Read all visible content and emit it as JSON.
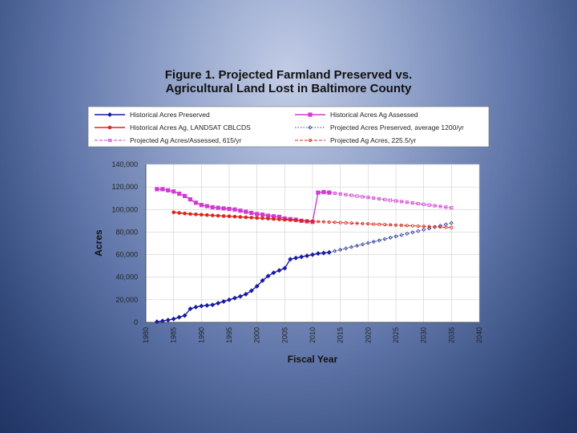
{
  "chart_data": {
    "type": "line",
    "title_lines": [
      "Figure 1. Projected Farmland Preserved vs.",
      "Agricultural Land Lost in Baltimore County"
    ],
    "xlabel": "Fiscal Year",
    "ylabel": "Acres",
    "xlim": [
      1980,
      2040
    ],
    "ylim": [
      0,
      140000
    ],
    "x_ticks": [
      1980,
      1985,
      1990,
      1995,
      2000,
      2005,
      2010,
      2015,
      2020,
      2025,
      2030,
      2035,
      2040
    ],
    "x_tick_labels": [
      "1980",
      "1985",
      "1990",
      "1995",
      "2000",
      "2005",
      "2010",
      "2015",
      "2020",
      "2025",
      "2030",
      "2035",
      "2040"
    ],
    "y_ticks": [
      0,
      20000,
      40000,
      60000,
      80000,
      100000,
      120000,
      140000
    ],
    "y_tick_labels": [
      "0",
      "20,000",
      "40,000",
      "60,000",
      "80,000",
      "100,000",
      "120,000",
      "140,000"
    ],
    "grid": true,
    "legend_position": "top",
    "series": [
      {
        "name": "Historical Acres Preserved",
        "color": "#1a1aa6",
        "style": "solid",
        "marker": "diamond",
        "x": [
          1982,
          1983,
          1984,
          1985,
          1986,
          1987,
          1988,
          1989,
          1990,
          1991,
          1992,
          1993,
          1994,
          1995,
          1996,
          1997,
          1998,
          1999,
          2000,
          2001,
          2002,
          2003,
          2004,
          2005,
          2006,
          2007,
          2008,
          2009,
          2010,
          2011,
          2012,
          2013
        ],
        "y": [
          500,
          1200,
          2000,
          3000,
          4500,
          6000,
          12000,
          13500,
          14500,
          15000,
          15500,
          17000,
          18500,
          20000,
          21500,
          23000,
          25000,
          28000,
          32000,
          37000,
          41000,
          44000,
          46000,
          48000,
          56000,
          57000,
          58000,
          59000,
          60000,
          61000,
          61500,
          62000
        ]
      },
      {
        "name": "Historical Acres Ag Assessed",
        "color": "#d23ad2",
        "style": "solid",
        "marker": "square",
        "x": [
          1982,
          1983,
          1984,
          1985,
          1986,
          1987,
          1988,
          1989,
          1990,
          1991,
          1992,
          1993,
          1994,
          1995,
          1996,
          1997,
          1998,
          1999,
          2000,
          2001,
          2002,
          2003,
          2004,
          2005,
          2006,
          2007,
          2008,
          2009,
          2010,
          2011,
          2012,
          2013
        ],
        "y": [
          118000,
          118000,
          117000,
          116000,
          114000,
          112000,
          109000,
          106000,
          104000,
          103000,
          102000,
          101500,
          101000,
          100500,
          100000,
          99000,
          98000,
          97000,
          96000,
          95500,
          94500,
          94000,
          93500,
          92000,
          91500,
          91000,
          90000,
          89500,
          89000,
          115000,
          115500,
          115000
        ]
      },
      {
        "name": "Historical Acres Ag, LANDSAT CBLCDS",
        "color": "#d82a1c",
        "style": "solid",
        "marker": "circle",
        "x": [
          1985,
          1986,
          1987,
          1988,
          1989,
          1990,
          1991,
          1992,
          1993,
          1994,
          1995,
          1996,
          1997,
          1998,
          1999,
          2000,
          2001,
          2002,
          2003,
          2004,
          2005,
          2006,
          2007,
          2008,
          2009,
          2010
        ],
        "y": [
          97500,
          97000,
          96500,
          96000,
          95700,
          95400,
          95100,
          94800,
          94500,
          94200,
          94000,
          93700,
          93400,
          93100,
          92800,
          92500,
          92200,
          91900,
          91600,
          91300,
          91000,
          90700,
          90400,
          90100,
          89800,
          89500
        ]
      },
      {
        "name": "Projected Acres Preserved, average 1200/yr",
        "color": "#2a3c9c",
        "style": "dotted",
        "marker": "small-diamond",
        "x": [
          2013,
          2035
        ],
        "y": [
          62000,
          88000
        ]
      },
      {
        "name": "Projected Ag Acres/Assessed, 615/yr",
        "color": "#d23ad2",
        "style": "dashed",
        "marker": "small-square",
        "x": [
          2013,
          2035
        ],
        "y": [
          115000,
          101500
        ]
      },
      {
        "name": "Projected Ag Acres, 225.5/yr",
        "color": "#d82a1c",
        "style": "dashed",
        "marker": "small-circle",
        "x": [
          2010,
          2035
        ],
        "y": [
          89500,
          84000
        ]
      }
    ]
  }
}
